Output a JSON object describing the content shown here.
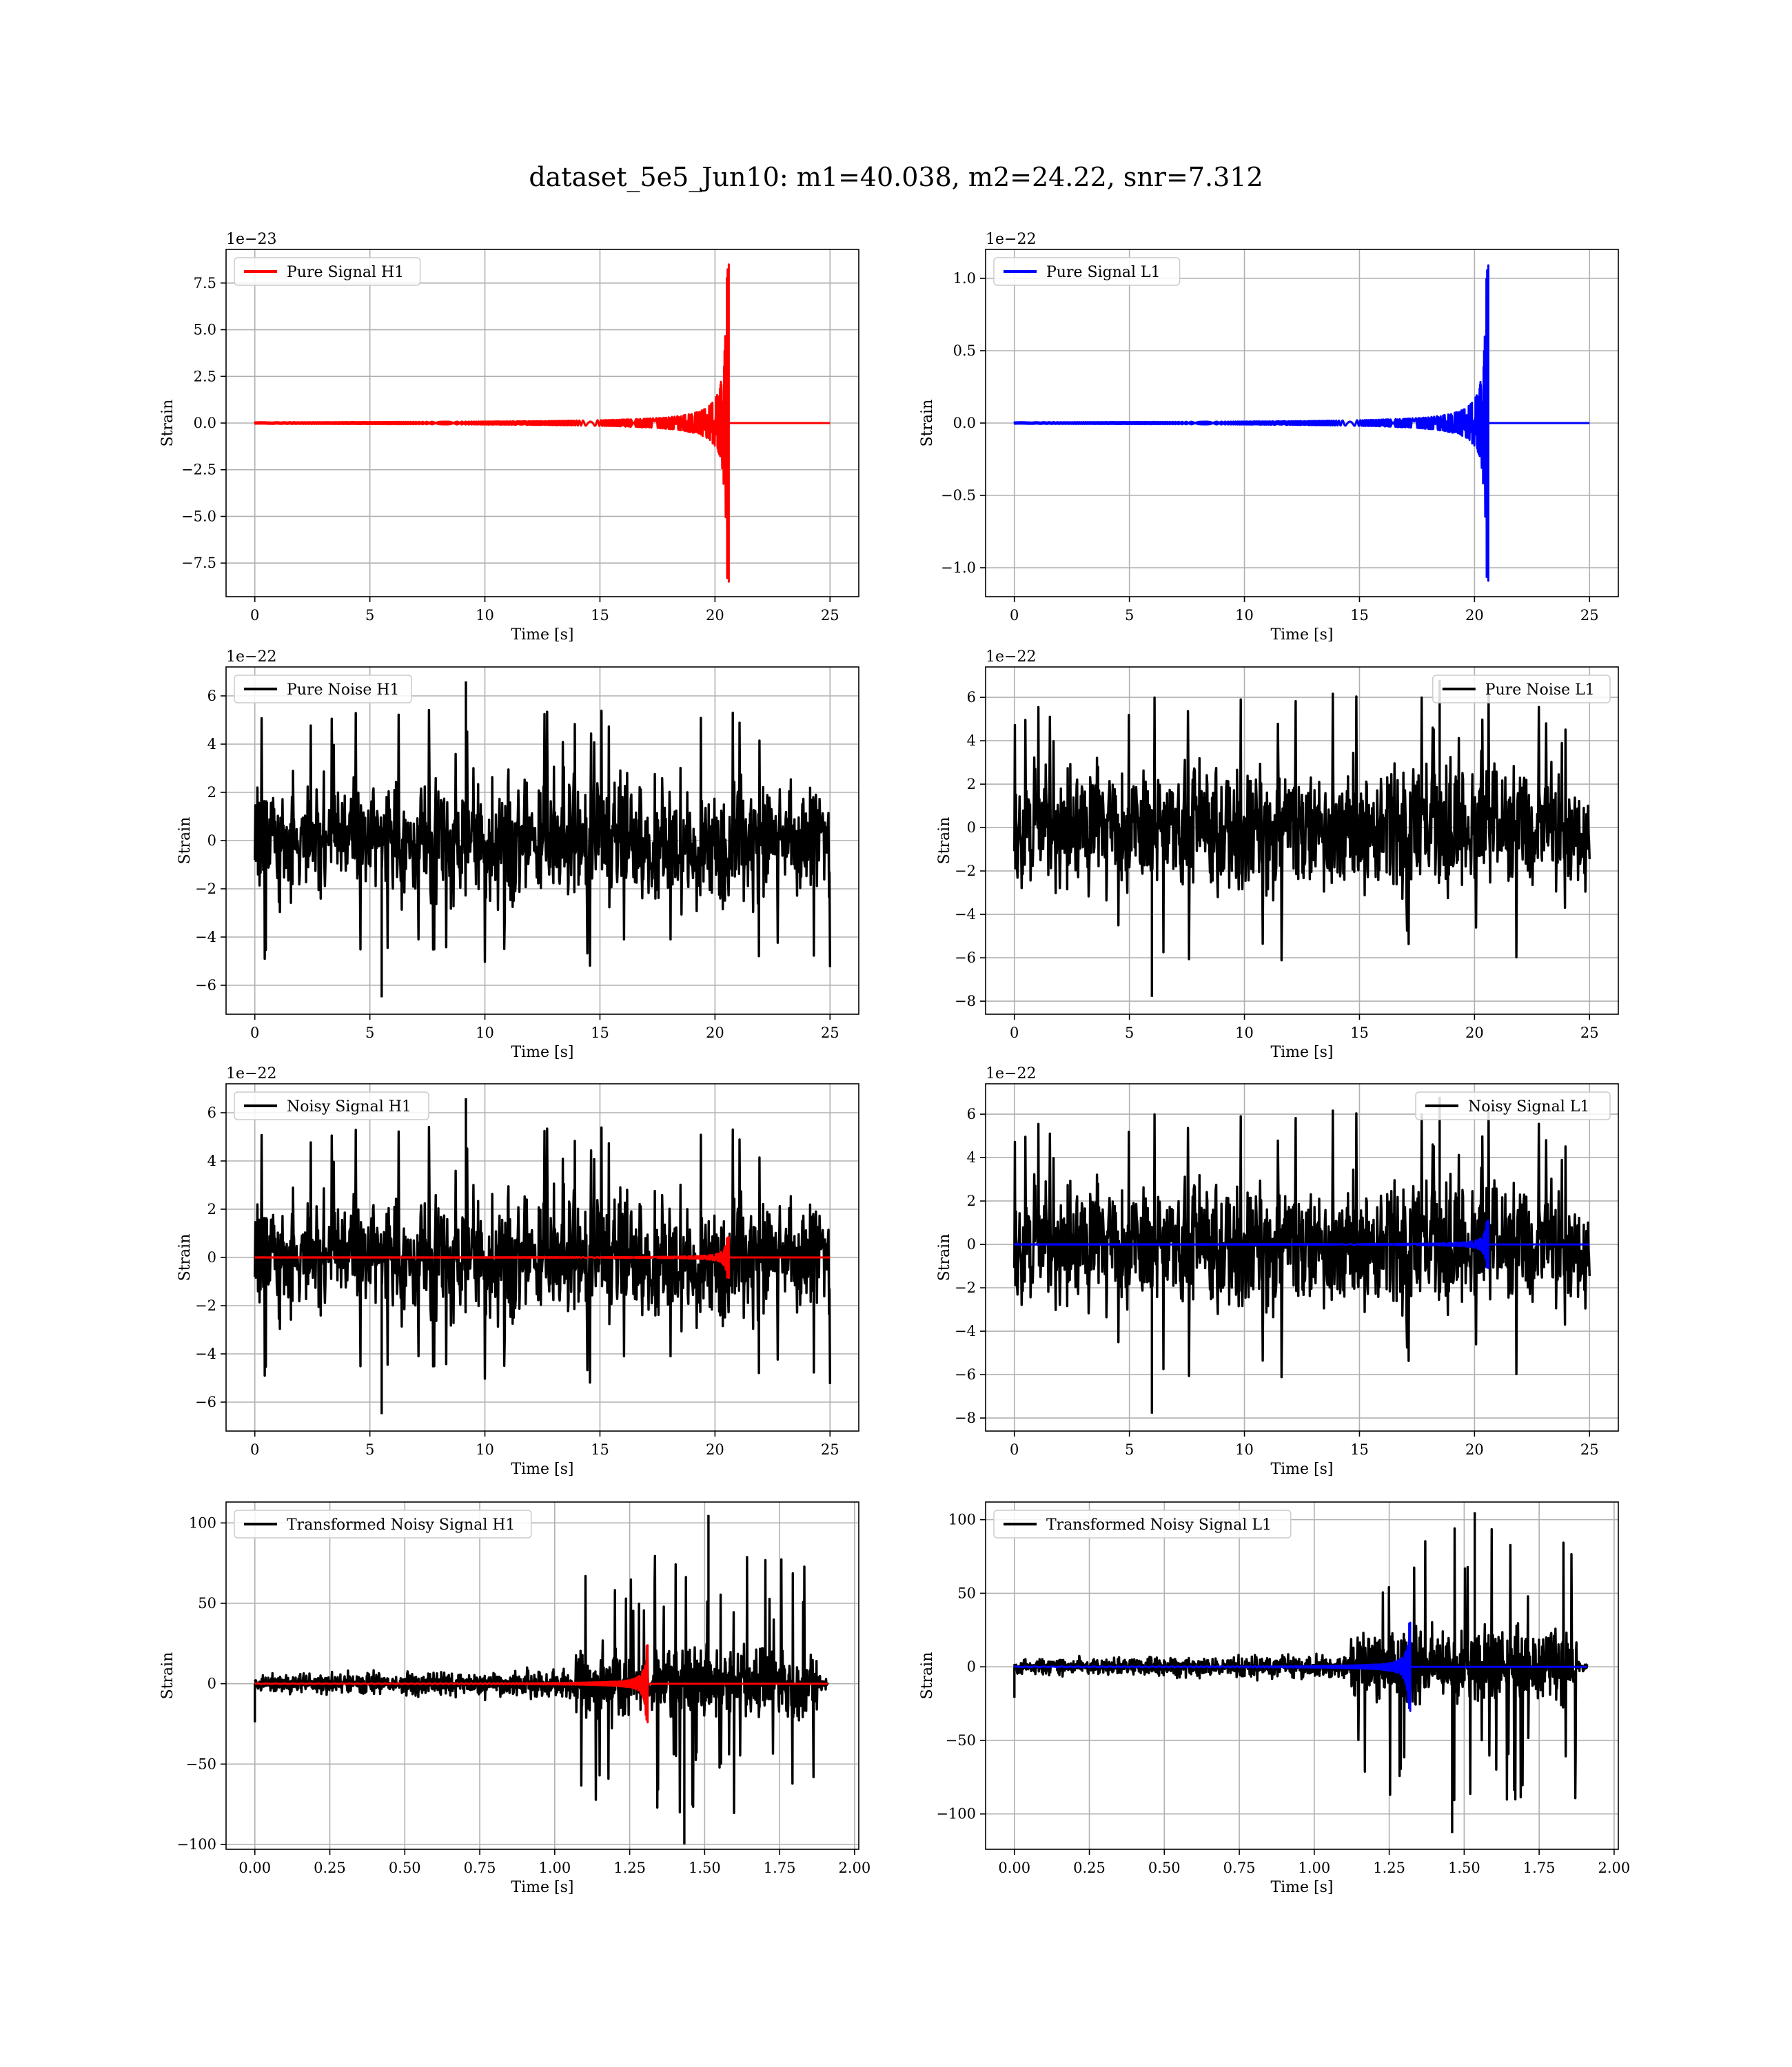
{
  "figure": {
    "title": "dataset_5e5_Jun10: m1=40.038, m2=24.22, snr=7.312"
  },
  "colors": {
    "h1_signal": "#ff0000",
    "l1_signal": "#0000ff",
    "noise": "#000000",
    "grid": "#b0b0b0"
  },
  "chart_data": [
    {
      "type": "line",
      "subtitle": "Pure Signal H1",
      "xlabel": "Time [s]",
      "ylabel": "Strain",
      "offset_label": "1e−23",
      "xlim": [
        -1.25,
        26.25
      ],
      "ylim": [
        -9.3,
        9.3
      ],
      "xticks": [
        0,
        5,
        10,
        15,
        20,
        25
      ],
      "xtick_labels": [
        "0",
        "5",
        "10",
        "15",
        "20",
        "25"
      ],
      "yticks": [
        -7.5,
        -5.0,
        -2.5,
        0.0,
        2.5,
        5.0,
        7.5
      ],
      "ytick_labels": [
        "−7.5",
        "−5.0",
        "−2.5",
        "0.0",
        "2.5",
        "5.0",
        "7.5"
      ],
      "legend_loc": "upper-left",
      "grid": true,
      "series": [
        {
          "name": "Pure Signal H1",
          "kind": "chirp",
          "color": "#ff0000",
          "x_start": 0,
          "x_end": 25,
          "merger_time": 20.6,
          "peak_amplitude": 8.5,
          "seed": 11
        }
      ]
    },
    {
      "type": "line",
      "subtitle": "Pure Signal L1",
      "xlabel": "Time [s]",
      "ylabel": "Strain",
      "offset_label": "1e−22",
      "xlim": [
        -1.25,
        26.25
      ],
      "ylim": [
        -1.2,
        1.2
      ],
      "xticks": [
        0,
        5,
        10,
        15,
        20,
        25
      ],
      "xtick_labels": [
        "0",
        "5",
        "10",
        "15",
        "20",
        "25"
      ],
      "yticks": [
        -1.0,
        -0.5,
        0.0,
        0.5,
        1.0
      ],
      "ytick_labels": [
        "−1.0",
        "−0.5",
        "0.0",
        "0.5",
        "1.0"
      ],
      "legend_loc": "upper-left",
      "grid": true,
      "series": [
        {
          "name": "Pure Signal L1",
          "kind": "chirp",
          "color": "#0000ff",
          "x_start": 0,
          "x_end": 25,
          "merger_time": 20.6,
          "peak_amplitude": 1.09,
          "seed": 12
        }
      ]
    },
    {
      "type": "line",
      "subtitle": "Pure Noise H1",
      "xlabel": "Time [s]",
      "ylabel": "Strain",
      "offset_label": "1e−22",
      "xlim": [
        -1.25,
        26.25
      ],
      "ylim": [
        -7.2,
        7.2
      ],
      "xticks": [
        0,
        5,
        10,
        15,
        20,
        25
      ],
      "xtick_labels": [
        "0",
        "5",
        "10",
        "15",
        "20",
        "25"
      ],
      "yticks": [
        -6,
        -4,
        -2,
        0,
        2,
        4,
        6
      ],
      "ytick_labels": [
        "−6",
        "−4",
        "−2",
        "0",
        "2",
        "4",
        "6"
      ],
      "legend_loc": "upper-left",
      "grid": true,
      "series": [
        {
          "name": "Pure Noise H1",
          "kind": "noise",
          "color": "#000000",
          "x_start": 0,
          "x_end": 25,
          "band": 3.4,
          "peak_max": 6.6,
          "peak_min": -6.5,
          "seed": 21
        }
      ]
    },
    {
      "type": "line",
      "subtitle": "Pure Noise L1",
      "xlabel": "Time [s]",
      "ylabel": "Strain",
      "offset_label": "1e−22",
      "xlim": [
        -1.25,
        26.25
      ],
      "ylim": [
        -8.6,
        7.4
      ],
      "xticks": [
        0,
        5,
        10,
        15,
        20,
        25
      ],
      "xtick_labels": [
        "0",
        "5",
        "10",
        "15",
        "20",
        "25"
      ],
      "yticks": [
        -8,
        -6,
        -4,
        -2,
        0,
        2,
        4,
        6
      ],
      "ytick_labels": [
        "−8",
        "−6",
        "−4",
        "−2",
        "0",
        "2",
        "4",
        "6"
      ],
      "legend_loc": "upper-right",
      "grid": true,
      "series": [
        {
          "name": "Pure Noise L1",
          "kind": "noise",
          "color": "#000000",
          "x_start": 0,
          "x_end": 25,
          "band": 3.9,
          "peak_max": 6.8,
          "peak_min": -7.8,
          "seed": 22
        }
      ]
    },
    {
      "type": "line",
      "subtitle": "Noisy Signal H1",
      "xlabel": "Time [s]",
      "ylabel": "Strain",
      "offset_label": "1e−22",
      "xlim": [
        -1.25,
        26.25
      ],
      "ylim": [
        -7.2,
        7.2
      ],
      "xticks": [
        0,
        5,
        10,
        15,
        20,
        25
      ],
      "xtick_labels": [
        "0",
        "5",
        "10",
        "15",
        "20",
        "25"
      ],
      "yticks": [
        -6,
        -4,
        -2,
        0,
        2,
        4,
        6
      ],
      "ytick_labels": [
        "−6",
        "−4",
        "−2",
        "0",
        "2",
        "4",
        "6"
      ],
      "legend_loc": "upper-left",
      "grid": true,
      "series": [
        {
          "name": "Noisy Signal H1",
          "kind": "noise",
          "color": "#000000",
          "x_start": 0,
          "x_end": 25,
          "band": 3.4,
          "peak_max": 6.6,
          "peak_min": -6.5,
          "seed": 21
        },
        {
          "name": "",
          "kind": "chirp",
          "color": "#ff0000",
          "x_start": 0,
          "x_end": 25,
          "merger_time": 20.6,
          "peak_amplitude": 0.85,
          "seed": 31
        }
      ]
    },
    {
      "type": "line",
      "subtitle": "Noisy Signal L1",
      "xlabel": "Time [s]",
      "ylabel": "Strain",
      "offset_label": "1e−22",
      "xlim": [
        -1.25,
        26.25
      ],
      "ylim": [
        -8.6,
        7.4
      ],
      "xticks": [
        0,
        5,
        10,
        15,
        20,
        25
      ],
      "xtick_labels": [
        "0",
        "5",
        "10",
        "15",
        "20",
        "25"
      ],
      "yticks": [
        -8,
        -6,
        -4,
        -2,
        0,
        2,
        4,
        6
      ],
      "ytick_labels": [
        "−8",
        "−6",
        "−4",
        "−2",
        "0",
        "2",
        "4",
        "6"
      ],
      "legend_loc": "upper-right",
      "grid": true,
      "series": [
        {
          "name": "Noisy Signal L1",
          "kind": "noise",
          "color": "#000000",
          "x_start": 0,
          "x_end": 25,
          "band": 3.9,
          "peak_max": 6.8,
          "peak_min": -7.8,
          "seed": 22
        },
        {
          "name": "",
          "kind": "chirp",
          "color": "#0000ff",
          "x_start": 0,
          "x_end": 25,
          "merger_time": 20.6,
          "peak_amplitude": 1.09,
          "seed": 32
        }
      ]
    },
    {
      "type": "line",
      "subtitle": "Transformed Noisy Signal H1",
      "xlabel": "Time [s]",
      "ylabel": "Strain",
      "offset_label": "",
      "xlim": [
        -0.096,
        2.014
      ],
      "ylim": [
        -103,
        113
      ],
      "xticks": [
        0,
        0.25,
        0.5,
        0.75,
        1.0,
        1.25,
        1.5,
        1.75,
        2.0
      ],
      "xtick_labels": [
        "0.00",
        "0.25",
        "0.50",
        "0.75",
        "1.00",
        "1.25",
        "1.50",
        "1.75",
        "2.00"
      ],
      "yticks": [
        -100,
        -50,
        0,
        50,
        100
      ],
      "ytick_labels": [
        "−100",
        "−50",
        "0",
        "50",
        "100"
      ],
      "legend_loc": "upper-left",
      "grid": true,
      "series": [
        {
          "name": "Transformed Noisy Signal H1",
          "kind": "transformed",
          "color": "#000000",
          "x_start": 0,
          "x_end": 1.91,
          "taper_end": 1.875,
          "jump_time": 1.07,
          "band_before": 8,
          "band_after": 30,
          "peak_max": 105,
          "peak_min": -100,
          "seed": 41
        },
        {
          "name": "",
          "kind": "chirp",
          "color": "#ff0000",
          "x_start": 0,
          "x_end": 1.91,
          "merger_time": 1.31,
          "peak_amplitude": 24,
          "smooth": true,
          "seed": 51
        }
      ]
    },
    {
      "type": "line",
      "subtitle": "Transformed Noisy Signal L1",
      "xlabel": "Time [s]",
      "ylabel": "Strain",
      "offset_label": "",
      "xlim": [
        -0.096,
        2.014
      ],
      "ylim": [
        -124,
        112
      ],
      "xticks": [
        0,
        0.25,
        0.5,
        0.75,
        1.0,
        1.25,
        1.5,
        1.75,
        2.0
      ],
      "xtick_labels": [
        "0.00",
        "0.25",
        "0.50",
        "0.75",
        "1.00",
        "1.25",
        "1.50",
        "1.75",
        "2.00"
      ],
      "yticks": [
        -100,
        -50,
        0,
        50,
        100
      ],
      "ytick_labels": [
        "−100",
        "−50",
        "0",
        "50",
        "100"
      ],
      "legend_loc": "upper-left",
      "grid": true,
      "series": [
        {
          "name": "Transformed Noisy Signal L1",
          "kind": "transformed",
          "color": "#000000",
          "x_start": 0,
          "x_end": 1.91,
          "taper_end": 1.875,
          "jump_time": 1.12,
          "band_before": 7,
          "band_after": 35,
          "peak_max": 105,
          "peak_min": -113,
          "seed": 42
        },
        {
          "name": "",
          "kind": "chirp",
          "color": "#0000ff",
          "x_start": 0,
          "x_end": 1.91,
          "merger_time": 1.32,
          "peak_amplitude": 30,
          "smooth": true,
          "seed": 52
        }
      ]
    }
  ]
}
